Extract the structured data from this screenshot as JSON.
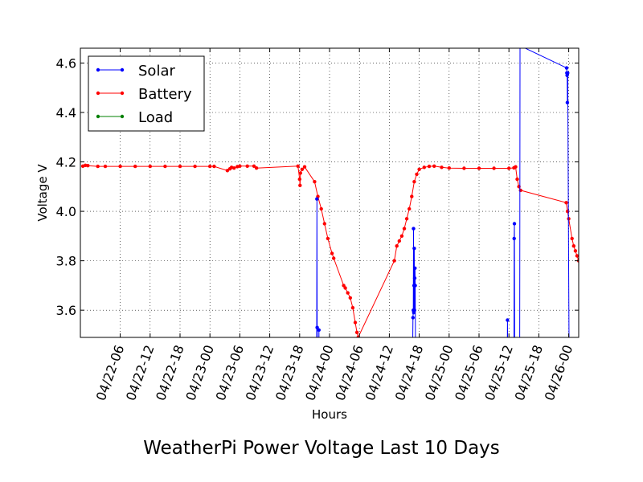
{
  "chart_data": {
    "type": "line",
    "title": "WeatherPi Power Voltage Last 10 Days",
    "xlabel": "Hours",
    "ylabel": "Voltage V",
    "xlim": [
      "04/21 22:00",
      "04/26 02:00"
    ],
    "ylim": [
      3.49,
      4.66
    ],
    "grid": true,
    "legend_position": "upper-left",
    "x_tick_labels": [
      "04/22-06",
      "04/22-12",
      "04/22-18",
      "04/23-00",
      "04/23-06",
      "04/23-12",
      "04/23-18",
      "04/24-00",
      "04/24-06",
      "04/24-12",
      "04/24-18",
      "04/25-00",
      "04/25-06",
      "04/25-12",
      "04/25-18",
      "04/26-00"
    ],
    "y_ticks": [
      3.6,
      3.8,
      4.0,
      4.2,
      4.4,
      4.6
    ],
    "y_tick_labels": [
      "3.6",
      "3.8",
      "4.0",
      "4.2",
      "4.4",
      "4.6"
    ],
    "series": [
      {
        "name": "Solar",
        "color": "#0000ff",
        "points": [
          [
            "04/23 21:25",
            3.4
          ],
          [
            "04/23 21:28",
            4.05
          ],
          [
            "04/23 21:31",
            3.53
          ],
          [
            "04/23 21:34",
            3.4
          ],
          [
            "04/23 21:50",
            3.4
          ],
          [
            "04/23 21:52",
            3.52
          ],
          [
            "04/23 21:54",
            3.4
          ],
          [
            "04/24 16:40",
            3.4
          ],
          [
            "04/24 16:45",
            3.57
          ],
          [
            "04/24 16:48",
            3.6
          ],
          [
            "04/24 16:51",
            3.93
          ],
          [
            "04/24 16:54",
            3.59
          ],
          [
            "04/24 16:57",
            3.7
          ],
          [
            "04/24 17:00",
            3.85
          ],
          [
            "04/24 17:03",
            3.6
          ],
          [
            "04/24 17:06",
            3.73
          ],
          [
            "04/24 17:09",
            3.77
          ],
          [
            "04/24 17:12",
            3.7
          ],
          [
            "04/24 17:15",
            3.4
          ],
          [
            "04/25 11:40",
            3.4
          ],
          [
            "04/25 11:43",
            3.56
          ],
          [
            "04/25 11:46",
            3.4
          ],
          [
            "04/25 13:00",
            3.4
          ],
          [
            "04/25 13:03",
            3.89
          ],
          [
            "04/25 13:06",
            3.95
          ],
          [
            "04/25 13:09",
            3.4
          ],
          [
            "04/25 14:10",
            3.4
          ],
          [
            "04/25 14:14",
            4.67
          ],
          [
            "04/25 23:35",
            4.58
          ],
          [
            "04/25 23:38",
            4.56
          ],
          [
            "04/25 23:41",
            4.55
          ],
          [
            "04/25 23:44",
            4.44
          ],
          [
            "04/25 23:47",
            4.56
          ],
          [
            "04/26 00:05",
            3.4
          ]
        ]
      },
      {
        "name": "Battery",
        "color": "#ff0000",
        "points": [
          [
            "04/21 22:30",
            4.183
          ],
          [
            "04/21 23:00",
            4.186
          ],
          [
            "04/21 23:30",
            4.185
          ],
          [
            "04/22 01:30",
            4.182
          ],
          [
            "04/22 03:00",
            4.182
          ],
          [
            "04/22 06:00",
            4.182
          ],
          [
            "04/22 09:00",
            4.182
          ],
          [
            "04/22 12:00",
            4.182
          ],
          [
            "04/22 15:00",
            4.182
          ],
          [
            "04/22 18:00",
            4.182
          ],
          [
            "04/22 21:00",
            4.182
          ],
          [
            "04/23 00:00",
            4.182
          ],
          [
            "04/23 00:50",
            4.182
          ],
          [
            "04/23 03:30",
            4.165
          ],
          [
            "04/23 04:00",
            4.172
          ],
          [
            "04/23 04:20",
            4.178
          ],
          [
            "04/23 04:50",
            4.175
          ],
          [
            "04/23 05:30",
            4.181
          ],
          [
            "04/23 06:00",
            4.183
          ],
          [
            "04/23 07:30",
            4.183
          ],
          [
            "04/23 08:50",
            4.183
          ],
          [
            "04/23 09:20",
            4.175
          ],
          [
            "04/23 17:40",
            4.183
          ],
          [
            "04/23 18:00",
            4.13
          ],
          [
            "04/23 18:05",
            4.105
          ],
          [
            "04/23 18:10",
            4.155
          ],
          [
            "04/23 18:30",
            4.17
          ],
          [
            "04/23 19:00",
            4.18
          ],
          [
            "04/23 21:00",
            4.12
          ],
          [
            "04/23 21:40",
            4.06
          ],
          [
            "04/23 22:20",
            4.01
          ],
          [
            "04/23 23:00",
            3.95
          ],
          [
            "04/23 23:40",
            3.89
          ],
          [
            "04/24 00:30",
            3.83
          ],
          [
            "04/24 00:50",
            3.81
          ],
          [
            "04/24 02:50",
            3.7
          ],
          [
            "04/24 03:10",
            3.69
          ],
          [
            "04/24 03:40",
            3.67
          ],
          [
            "04/24 04:10",
            3.65
          ],
          [
            "04/24 04:40",
            3.61
          ],
          [
            "04/24 05:10",
            3.55
          ],
          [
            "04/24 05:30",
            3.51
          ],
          [
            "04/24 05:45",
            3.49
          ],
          [
            "04/24 13:00",
            3.8
          ],
          [
            "04/24 13:30",
            3.86
          ],
          [
            "04/24 14:00",
            3.88
          ],
          [
            "04/24 14:30",
            3.9
          ],
          [
            "04/24 15:00",
            3.93
          ],
          [
            "04/24 15:30",
            3.97
          ],
          [
            "04/24 16:00",
            4.01
          ],
          [
            "04/24 16:30",
            4.06
          ],
          [
            "04/24 17:00",
            4.12
          ],
          [
            "04/24 17:30",
            4.15
          ],
          [
            "04/24 18:00",
            4.17
          ],
          [
            "04/24 19:00",
            4.178
          ],
          [
            "04/24 20:00",
            4.182
          ],
          [
            "04/24 21:00",
            4.183
          ],
          [
            "04/24 22:30",
            4.178
          ],
          [
            "04/25 00:00",
            4.175
          ],
          [
            "04/25 03:00",
            4.174
          ],
          [
            "04/25 06:00",
            4.174
          ],
          [
            "04/25 09:00",
            4.174
          ],
          [
            "04/25 12:00",
            4.174
          ],
          [
            "04/25 13:00",
            4.176
          ],
          [
            "04/25 13:20",
            4.18
          ],
          [
            "04/25 13:40",
            4.13
          ],
          [
            "04/25 14:00",
            4.1
          ],
          [
            "04/25 14:20",
            4.085
          ],
          [
            "04/25 23:30",
            4.035
          ],
          [
            "04/25 23:45",
            4.0
          ],
          [
            "04/26 00:00",
            3.97
          ],
          [
            "04/26 00:40",
            3.89
          ],
          [
            "04/26 01:00",
            3.86
          ],
          [
            "04/26 01:20",
            3.84
          ],
          [
            "04/26 01:40",
            3.82
          ],
          [
            "04/26 02:00",
            3.8
          ]
        ]
      },
      {
        "name": "Load",
        "color": "#008000",
        "points": []
      }
    ]
  }
}
